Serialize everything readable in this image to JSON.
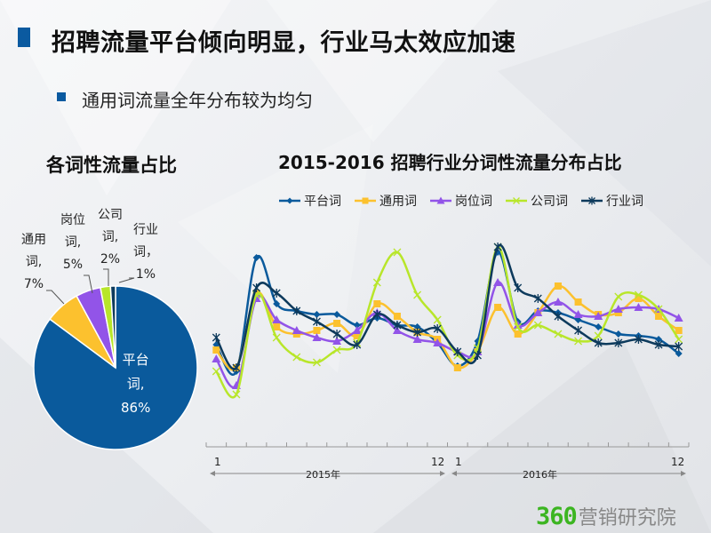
{
  "header": {
    "title": "招聘流量平台倾向明显，行业马太效应加速",
    "subtitle": "通用词流量全年分布较为均匀"
  },
  "colors": {
    "accent": "#0b5aa0",
    "platform": "#0a5a9c",
    "common": "#fcc12e",
    "position": "#9254e8",
    "company": "#b8e62a",
    "industry": "#0d3a5c"
  },
  "logo": {
    "num": "360",
    "text": "营销研究院"
  },
  "chart_data": [
    {
      "type": "pie",
      "title": "各词性流量占比",
      "slices": [
        {
          "name": "平台词",
          "label_lines": [
            "平台",
            "词,",
            "86%"
          ],
          "value": 86,
          "color": "#0a5a9c"
        },
        {
          "name": "通用词",
          "label_lines": [
            "通用",
            "词,",
            "7%"
          ],
          "value": 7,
          "color": "#fcc12e"
        },
        {
          "name": "岗位词",
          "label_lines": [
            "岗位",
            "词,",
            "5%"
          ],
          "value": 5,
          "color": "#9254e8"
        },
        {
          "name": "公司词",
          "label_lines": [
            "公司",
            "词,",
            "2%"
          ],
          "value": 2,
          "color": "#b8e62a"
        },
        {
          "name": "行业词",
          "label_lines": [
            "行业",
            "词，",
            "1%"
          ],
          "value": 1,
          "color": "#0d3a5c"
        }
      ]
    },
    {
      "type": "line",
      "title": "2015-2016 招聘行业分词性流量分布占比",
      "x_tick_labels": [
        "1",
        "12",
        "1",
        "12"
      ],
      "x_groups": [
        "2015年",
        "2016年"
      ],
      "x": [
        "2015-1",
        "2015-2",
        "2015-3",
        "2015-4",
        "2015-5",
        "2015-6",
        "2015-7",
        "2015-8",
        "2015-9",
        "2015-10",
        "2015-11",
        "2015-12",
        "2016-1",
        "2016-2",
        "2016-3",
        "2016-4",
        "2016-5",
        "2016-6",
        "2016-7",
        "2016-8",
        "2016-9",
        "2016-10",
        "2016-11",
        "2016-12"
      ],
      "ylim": [
        0,
        100
      ],
      "y_axis_shown": false,
      "grid": false,
      "legend": "top",
      "smooth": true,
      "series": [
        {
          "name": "平台词",
          "color": "#0a5a9c",
          "marker": "diamond",
          "values": [
            36,
            21,
            85,
            59,
            55,
            53,
            53,
            47,
            51,
            47,
            46,
            37,
            24,
            38,
            88,
            49,
            55,
            54,
            50,
            46,
            42,
            41,
            39,
            31
          ]
        },
        {
          "name": "通用词",
          "color": "#fcc12e",
          "marker": "square",
          "values": [
            33,
            23,
            65,
            46,
            42,
            44,
            48,
            41,
            59,
            52,
            43,
            39,
            23,
            32,
            57,
            42,
            54,
            69,
            60,
            53,
            54,
            62,
            52,
            44
          ]
        },
        {
          "name": "岗位词",
          "color": "#9254e8",
          "marker": "triangle",
          "values": [
            28,
            13,
            62,
            50,
            44,
            40,
            38,
            44,
            54,
            44,
            39,
            37,
            32,
            32,
            71,
            47,
            54,
            60,
            53,
            52,
            56,
            57,
            56,
            51
          ]
        },
        {
          "name": "公司词",
          "color": "#b8e62a",
          "marker": "x",
          "values": [
            21,
            8,
            64,
            40,
            29,
            26,
            33,
            37,
            71,
            88,
            64,
            50,
            30,
            34,
            91,
            46,
            47,
            42,
            38,
            41,
            63,
            64,
            56,
            39
          ]
        },
        {
          "name": "行业词",
          "color": "#0d3a5c",
          "marker": "star",
          "values": [
            40,
            23,
            68,
            65,
            55,
            49,
            42,
            36,
            53,
            47,
            43,
            45,
            32,
            30,
            91,
            68,
            62,
            52,
            44,
            37,
            37,
            39,
            36,
            35
          ]
        }
      ]
    }
  ]
}
